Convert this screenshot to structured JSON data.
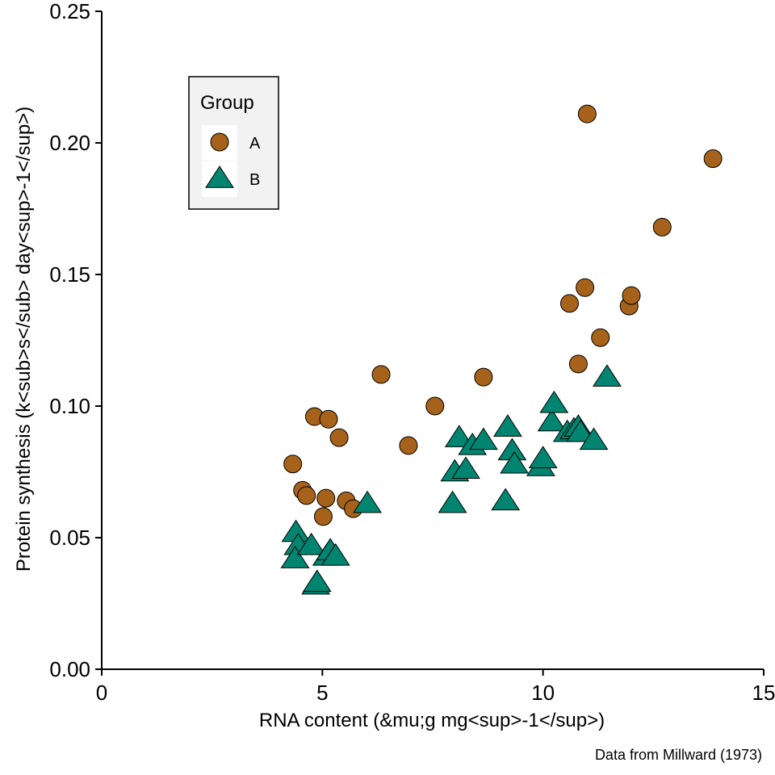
{
  "chart_data": {
    "type": "scatter",
    "xlabel": "RNA content (&mu;g mg<sup>-1</sup>)",
    "ylabel": "Protein synthesis (k<sub>s</sub> day<sup>-1</sup>)",
    "caption": "Data from Millward (1973)",
    "xlim": [
      0,
      15
    ],
    "ylim": [
      0,
      0.25
    ],
    "x_ticks": [
      0,
      5,
      10,
      15
    ],
    "x_tick_labels": [
      "0",
      "5",
      "10",
      "15"
    ],
    "y_ticks": [
      0,
      0.05,
      0.1,
      0.15,
      0.2,
      0.25
    ],
    "y_tick_labels": [
      "0.00",
      "0.05",
      "0.10",
      "0.15",
      "0.20",
      "0.25"
    ],
    "grid": false,
    "legend": {
      "title": "Group",
      "position": "top-left",
      "entries": [
        {
          "label": "A",
          "shape": "circle",
          "color": "#a6611a"
        },
        {
          "label": "B",
          "shape": "triangle",
          "color": "#018571"
        }
      ]
    },
    "series": [
      {
        "name": "A",
        "shape": "circle",
        "color": "#a6611a",
        "points": [
          [
            4.33,
            0.078
          ],
          [
            4.82,
            0.096
          ],
          [
            5.14,
            0.095
          ],
          [
            4.55,
            0.068
          ],
          [
            4.64,
            0.066
          ],
          [
            5.08,
            0.065
          ],
          [
            5.02,
            0.058
          ],
          [
            5.38,
            0.088
          ],
          [
            5.54,
            0.064
          ],
          [
            5.7,
            0.061
          ],
          [
            6.33,
            0.112
          ],
          [
            6.95,
            0.085
          ],
          [
            7.55,
            0.1
          ],
          [
            8.65,
            0.111
          ],
          [
            10.6,
            0.139
          ],
          [
            10.95,
            0.145
          ],
          [
            10.8,
            0.116
          ],
          [
            11.3,
            0.126
          ],
          [
            11.95,
            0.138
          ],
          [
            12.0,
            0.142
          ],
          [
            11.0,
            0.211
          ],
          [
            12.7,
            0.168
          ],
          [
            13.85,
            0.194
          ]
        ]
      },
      {
        "name": "B",
        "shape": "triangle",
        "color": "#018571",
        "points": [
          [
            4.4,
            0.052
          ],
          [
            4.45,
            0.047
          ],
          [
            4.38,
            0.042
          ],
          [
            4.75,
            0.047
          ],
          [
            4.85,
            0.032
          ],
          [
            4.88,
            0.033
          ],
          [
            5.1,
            0.043
          ],
          [
            5.18,
            0.045
          ],
          [
            5.3,
            0.043
          ],
          [
            6.02,
            0.063
          ],
          [
            7.95,
            0.063
          ],
          [
            8.0,
            0.075
          ],
          [
            8.1,
            0.088
          ],
          [
            8.25,
            0.076
          ],
          [
            8.4,
            0.085
          ],
          [
            8.65,
            0.087
          ],
          [
            9.15,
            0.064
          ],
          [
            9.2,
            0.092
          ],
          [
            9.3,
            0.083
          ],
          [
            9.35,
            0.078
          ],
          [
            9.95,
            0.077
          ],
          [
            10.0,
            0.08
          ],
          [
            10.2,
            0.094
          ],
          [
            10.25,
            0.101
          ],
          [
            10.55,
            0.09
          ],
          [
            10.7,
            0.091
          ],
          [
            10.8,
            0.092
          ],
          [
            10.85,
            0.09
          ],
          [
            11.15,
            0.087
          ],
          [
            11.45,
            0.111
          ]
        ]
      }
    ]
  }
}
